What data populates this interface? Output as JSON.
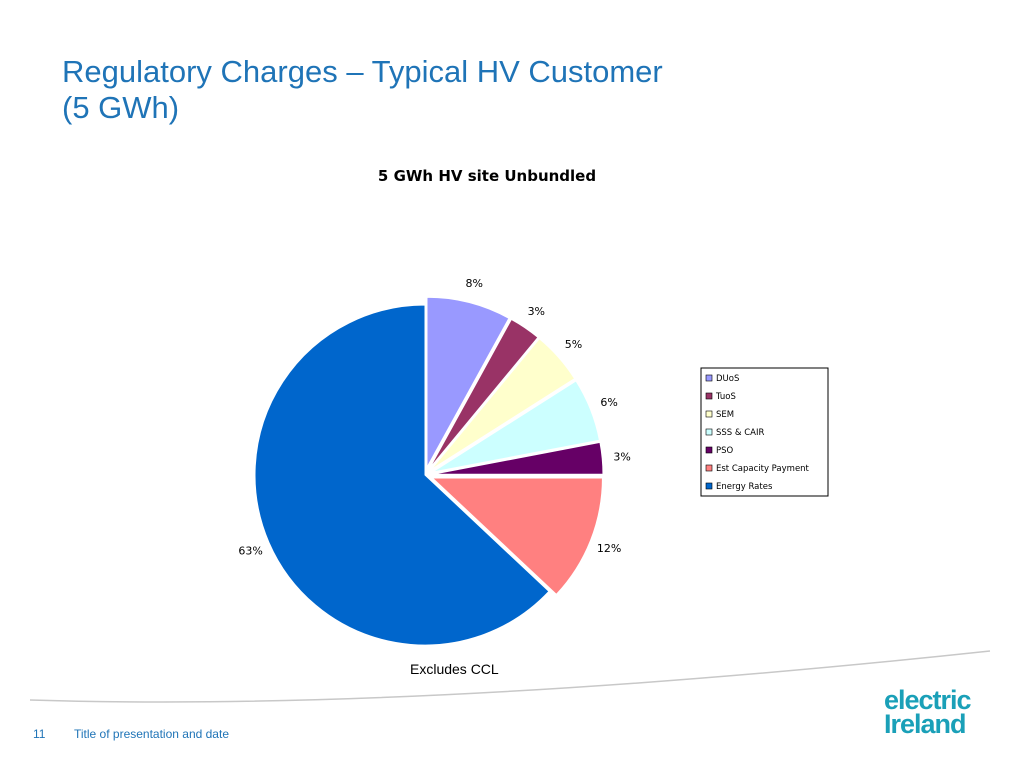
{
  "slide": {
    "title_line1": "Regulatory Charges – Typical HV Customer",
    "title_line2": "(5 GWh)",
    "note": "Excludes CCL",
    "page_number": "11",
    "footer": "Title of presentation and date",
    "logo_line1": "electric",
    "logo_line2": "Ireland"
  },
  "chart_data": {
    "type": "pie",
    "title": "5 GWh HV site Unbundled",
    "exploded": true,
    "legend_position": "right",
    "slices": [
      {
        "name": "DUoS",
        "value": 8,
        "label": "8%",
        "color": "#9999ff"
      },
      {
        "name": "TuoS",
        "value": 3,
        "label": "3%",
        "color": "#993366"
      },
      {
        "name": "SEM",
        "value": 5,
        "label": "5%",
        "color": "#ffffcc"
      },
      {
        "name": "SSS & CAIR",
        "value": 6,
        "label": "6%",
        "color": "#ccffff"
      },
      {
        "name": "PSO",
        "value": 3,
        "label": "3%",
        "color": "#660066"
      },
      {
        "name": "Est Capacity Payment",
        "value": 12,
        "label": "12%",
        "color": "#ff8080"
      },
      {
        "name": "Energy Rates",
        "value": 63,
        "label": "63%",
        "color": "#0066cc"
      }
    ]
  }
}
